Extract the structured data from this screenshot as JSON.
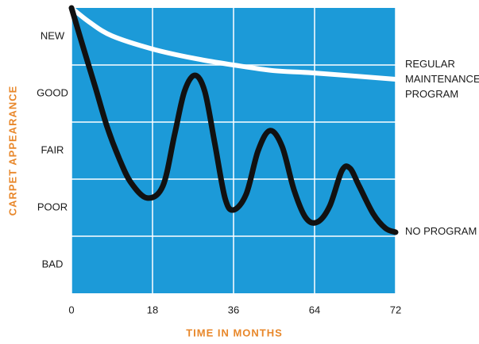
{
  "chart_data": {
    "type": "line",
    "x_label": "TIME IN MONTHS",
    "y_label": "CARPET APPEARANCE",
    "y_categories": [
      "NEW",
      "GOOD",
      "FAIR",
      "POOR",
      "BAD"
    ],
    "xlim": [
      0,
      72
    ],
    "xticks": [
      0,
      18,
      36,
      64,
      72
    ],
    "background": "#1c9ad8",
    "grid": true,
    "series": [
      {
        "name": "REGULAR MAINTENANCE PROGRAM",
        "color": "#ffffff",
        "x": [
          0,
          4,
          9,
          18,
          27,
          36,
          50,
          64,
          72
        ],
        "values": [
          5,
          4.75,
          4.51,
          4.28,
          4.12,
          4.0,
          3.9,
          3.86,
          3.75
        ]
      },
      {
        "name": "NO PROGRAM",
        "color": "#111111",
        "x": [
          0,
          2.6,
          5.3,
          7.9,
          10.6,
          13.2,
          16.8,
          20.3,
          22.9,
          25.1,
          27.4,
          29.6,
          31.8,
          34.1,
          36,
          40.4,
          44.5,
          48.6,
          52.8,
          56.9,
          61,
          64.3,
          65.5,
          66.7,
          67.5,
          68.4,
          69.8,
          71,
          72
        ],
        "values": [
          5,
          4.31,
          3.61,
          2.92,
          2.36,
          1.94,
          1.67,
          1.88,
          2.78,
          3.54,
          3.82,
          3.54,
          2.64,
          1.67,
          1.46,
          1.74,
          2.5,
          2.85,
          2.57,
          1.81,
          1.32,
          1.25,
          1.53,
          2.15,
          2.19,
          1.88,
          1.39,
          1.14,
          1.07
        ]
      }
    ]
  }
}
